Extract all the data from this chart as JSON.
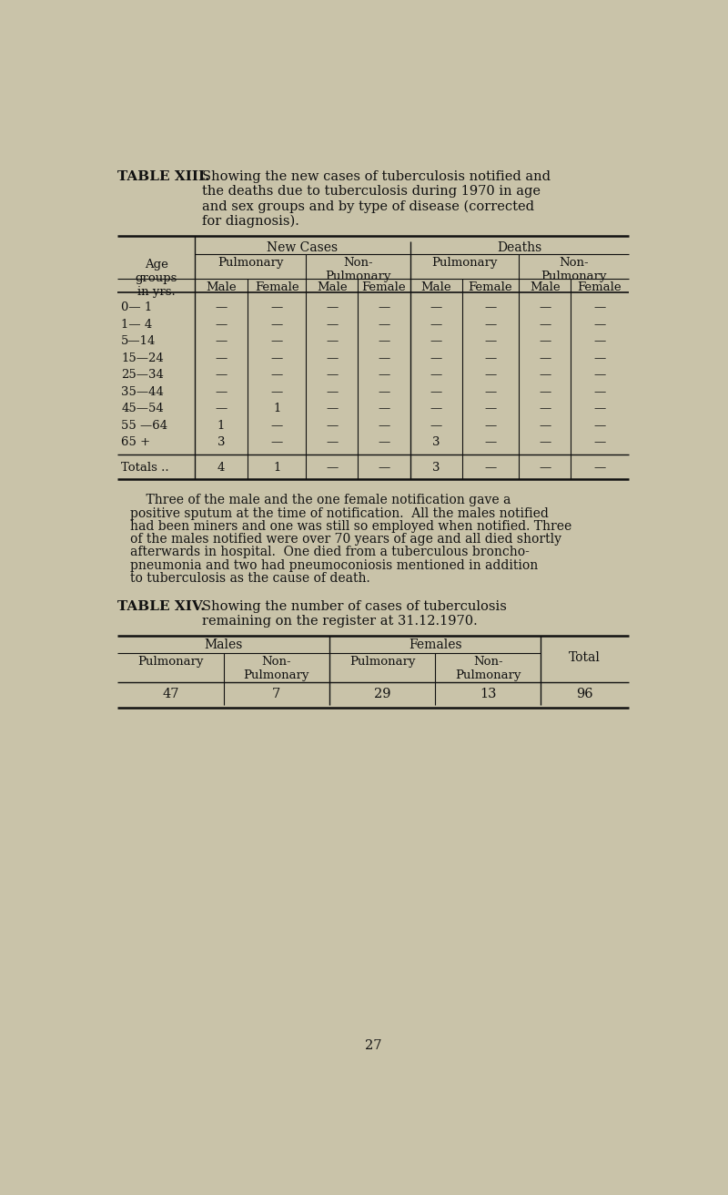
{
  "bg_color": "#c9c3a9",
  "text_color": "#1a1a1a",
  "page_number": "27",
  "table13": {
    "title_bold": "TABLE XIII.",
    "title_text": "Showing the new cases of tuberculosis notified and\nthe deaths due to tuberculosis during 1970 in age\nand sex groups and by type of disease (corrected\nfor diagnosis).",
    "col_label": "Age\ngroups\nin yrs.",
    "age_groups": [
      "0— 1",
      "1— 4",
      "5—14",
      "15—24",
      "25—34",
      "35—44",
      "45—54",
      "55 —64",
      "65 +"
    ],
    "data": [
      [
        "—",
        "—",
        "—",
        "—",
        "—",
        "—",
        "—",
        "—"
      ],
      [
        "—",
        "—",
        "—",
        "—",
        "—",
        "—",
        "—",
        "—"
      ],
      [
        "—",
        "—",
        "—",
        "—",
        "—",
        "—",
        "—",
        "—"
      ],
      [
        "—",
        "—",
        "—",
        "—",
        "—",
        "—",
        "—",
        "—"
      ],
      [
        "—",
        "—",
        "—",
        "—",
        "—",
        "—",
        "—",
        "—"
      ],
      [
        "—",
        "—",
        "—",
        "—",
        "—",
        "—",
        "—",
        "—"
      ],
      [
        "—",
        "1",
        "—",
        "—",
        "—",
        "—",
        "—",
        "—"
      ],
      [
        "1",
        "—",
        "—",
        "—",
        "—",
        "—",
        "—",
        "—"
      ],
      [
        "3",
        "—",
        "—",
        "—",
        "3",
        "—",
        "—",
        "—"
      ]
    ],
    "totals_label": "Totals ..",
    "totals": [
      "4",
      "1",
      "—",
      "—",
      "3",
      "—",
      "—",
      "—"
    ]
  },
  "paragraph_lines": [
    "    Three of the male and the one female notification gave a",
    "positive sputum at the time of notification.  All the males notified",
    "had been miners and one was still so employed when notified. Three",
    "of the males notified were over 70 years of age and all died shortly",
    "afterwards in hospital.  One died from a tuberculous broncho-",
    "pneumonia and two had pneumoconiosis mentioned in addition",
    "to tuberculosis as the cause of death."
  ],
  "table14": {
    "title_bold": "TABLE XIV.",
    "title_text": "Showing the number of cases of tuberculosis\nremaining on the register at 31.12.1970.",
    "data": [
      "47",
      "7",
      "29",
      "13",
      "96"
    ]
  }
}
